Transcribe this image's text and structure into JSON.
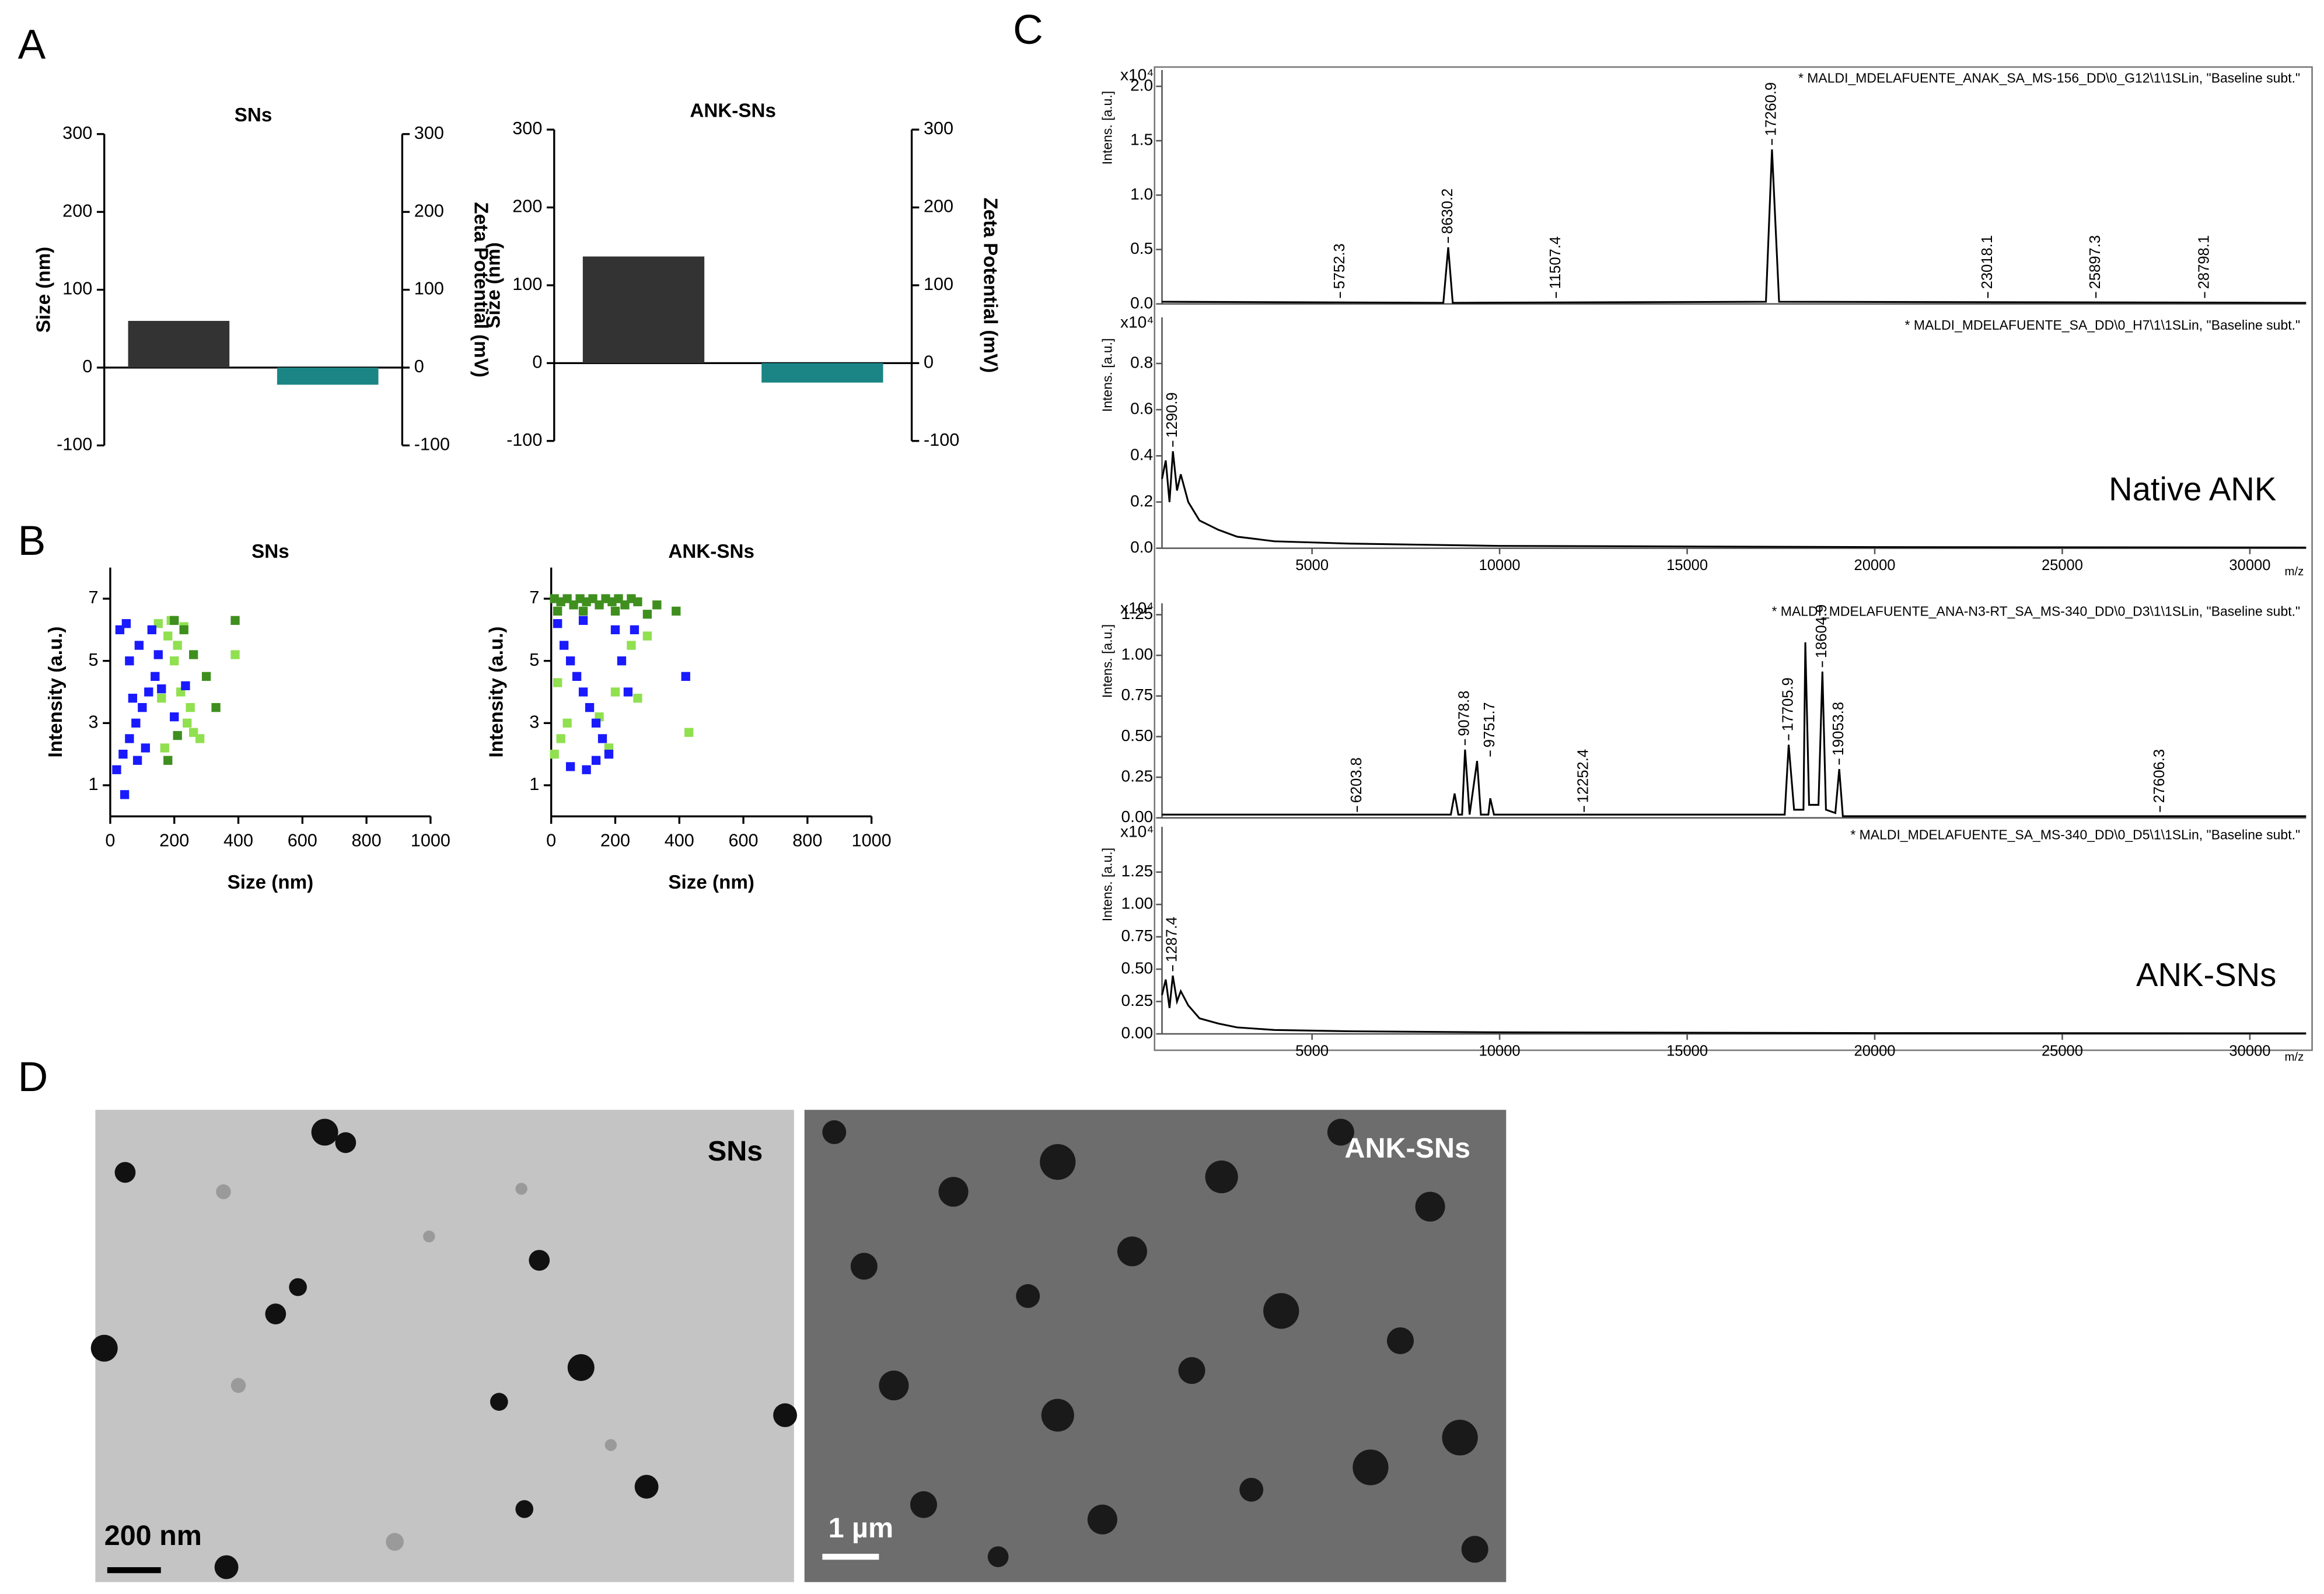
{
  "panel_labels": [
    "A",
    "B",
    "C",
    "D"
  ],
  "chart_data": [
    {
      "type": "bar",
      "title": "SNs",
      "ylabel": "Size (nm)",
      "y2label": "Zeta Potential (mV)",
      "categories": [
        null,
        null
      ],
      "series": [
        {
          "color": "#333333",
          "values": [
            60,
            null
          ]
        },
        {
          "color": "#1b8585",
          "values": [
            null,
            -22
          ],
          "axis": "y2"
        }
      ],
      "ylim": [
        -100,
        300
      ],
      "yticks": [
        -100,
        0,
        100,
        200,
        300
      ],
      "y2lim": [
        -100,
        300
      ],
      "y2ticks": [
        -100,
        0,
        100,
        200,
        300
      ]
    },
    {
      "type": "bar",
      "title": "ANK-SNs",
      "ylabel": "Size (nm)",
      "y2label": "Zeta Potential (mV)",
      "categories": [
        null,
        null
      ],
      "series": [
        {
          "color": "#333333",
          "values": [
            137,
            null
          ]
        },
        {
          "color": "#1b8585",
          "values": [
            null,
            -25
          ],
          "axis": "y2"
        }
      ],
      "ylim": [
        -100,
        300
      ],
      "yticks": [
        -100,
        0,
        100,
        200,
        300
      ],
      "y2lim": [
        -100,
        300
      ],
      "y2ticks": [
        -100,
        0,
        100,
        200,
        300
      ]
    },
    {
      "type": "scatter",
      "title": "SNs",
      "xlabel": "Size (nm)",
      "ylabel": "Intensity (a.u.)",
      "xlim": [
        0,
        1000
      ],
      "xticks": [
        0,
        200,
        400,
        600,
        800,
        1000
      ],
      "ylim": [
        0,
        8
      ],
      "yticks": [
        1,
        3,
        5,
        7
      ],
      "series": [
        {
          "color": "#90e050",
          "x": [
            150,
            180,
            200,
            220,
            240,
            260,
            170,
            190,
            210,
            250,
            280,
            390,
            230,
            160
          ],
          "values": [
            6.2,
            5.8,
            5,
            4,
            3,
            2.7,
            2.2,
            6.3,
            5.5,
            3.5,
            2.5,
            5.2,
            6.1,
            3.8
          ]
        },
        {
          "color": "#3f8f1f",
          "x": [
            200,
            230,
            260,
            300,
            330,
            390,
            210,
            180
          ],
          "values": [
            6.3,
            6,
            5.2,
            4.5,
            3.5,
            6.3,
            2.6,
            1.8
          ]
        },
        {
          "color": "#1a1aff",
          "x": [
            20,
            40,
            60,
            80,
            100,
            120,
            140,
            60,
            90,
            30,
            50,
            110,
            70,
            150,
            160,
            130,
            200,
            45,
            85,
            235
          ],
          "values": [
            1.5,
            2,
            2.5,
            3,
            3.5,
            4,
            4.5,
            5,
            5.5,
            6,
            6.2,
            2.2,
            3.8,
            5.2,
            4.1,
            6,
            3.2,
            0.7,
            1.8,
            4.2
          ]
        }
      ]
    },
    {
      "type": "scatter",
      "title": "ANK-SNs",
      "xlabel": "Size (nm)",
      "ylabel": "Intensity (a.u.)",
      "xlim": [
        0,
        1000
      ],
      "xticks": [
        0,
        200,
        400,
        600,
        800,
        1000
      ],
      "ylim": [
        0,
        8
      ],
      "yticks": [
        1,
        3,
        5,
        7
      ],
      "series": [
        {
          "color": "#90e050",
          "x": [
            10,
            30,
            50,
            150,
            200,
            250,
            300,
            20,
            180,
            270,
            430
          ],
          "values": [
            2,
            2.5,
            3,
            3.2,
            4,
            5.5,
            5.8,
            4.3,
            2.2,
            3.8,
            2.7
          ]
        },
        {
          "color": "#3f8f1f",
          "x": [
            10,
            30,
            50,
            70,
            90,
            110,
            130,
            150,
            170,
            190,
            210,
            230,
            250,
            270,
            300,
            330,
            390,
            20,
            100,
            200
          ],
          "values": [
            7,
            6.9,
            7,
            6.8,
            7,
            6.9,
            7,
            6.8,
            7,
            6.9,
            7,
            6.8,
            7,
            6.9,
            6.5,
            6.8,
            6.6,
            6.6,
            6.6,
            6.6
          ]
        },
        {
          "color": "#1a1aff",
          "x": [
            20,
            40,
            60,
            80,
            100,
            120,
            140,
            160,
            180,
            200,
            220,
            240,
            60,
            100,
            140,
            260,
            420,
            110
          ],
          "values": [
            6.2,
            5.5,
            5,
            4.5,
            4,
            3.5,
            3,
            2.5,
            2,
            6,
            5,
            4,
            1.6,
            6.3,
            1.8,
            6,
            4.5,
            1.5
          ]
        }
      ]
    },
    {
      "type": "line",
      "header": "* MALDI_MDELAFUENTE_ANAK_SA_MS-156_DD\\0_G12\\1\\1SLin, \"Baseline subt.\"",
      "ylabel": "Intens. [a.u.]",
      "y_multiplier": "x10⁴",
      "xlim": [
        1000,
        31500
      ],
      "ylim": [
        0,
        2.15
      ],
      "yticks": [
        {
          "value": 0,
          "label": "0.0"
        },
        0.5,
        {
          "value": 1,
          "label": "1.0"
        },
        1.5,
        {
          "value": 2,
          "label": "2.0"
        }
      ],
      "series": [
        {
          "color": "#000000",
          "x": [
            1000,
            8500,
            8630.2,
            8750,
            17100,
            17260.9,
            17450,
            31500
          ],
          "values": [
            0.02,
            0.01,
            0.52,
            0.01,
            0.02,
            1.42,
            0.02,
            0.01
          ]
        }
      ],
      "peaks": [
        5752.3,
        8630.2,
        11507.4,
        17260.9,
        23018.1,
        25897.3,
        28798.1
      ]
    },
    {
      "type": "line",
      "header": "* MALDI_MDELAFUENTE_SA_DD\\0_H7\\1\\1SLin, \"Baseline subt.\"",
      "ylabel": "Intens. [a.u.]",
      "y_multiplier": "x10⁴",
      "note": "Native ANK",
      "xlabel": "m/z",
      "xlim": [
        1000,
        31500
      ],
      "xticks": [
        5000,
        10000,
        15000,
        20000,
        25000,
        30000
      ],
      "ylim": [
        0,
        1.0
      ],
      "yticks": [
        {
          "value": 0,
          "label": "0.0"
        },
        0.2,
        0.4,
        0.6,
        0.8
      ],
      "series": [
        {
          "color": "#000000",
          "x": [
            1000,
            1100,
            1200,
            1290.9,
            1400,
            1500,
            1700,
            2000,
            2500,
            3000,
            4000,
            6000,
            10000,
            20000,
            31500
          ],
          "values": [
            0.3,
            0.38,
            0.2,
            0.42,
            0.25,
            0.32,
            0.2,
            0.12,
            0.08,
            0.05,
            0.03,
            0.02,
            0.01,
            0.005,
            0.003
          ]
        }
      ],
      "peaks": [
        1290.9
      ]
    },
    {
      "type": "line",
      "header": "* MALDI_MDELAFUENTE_ANA-N3-RT_SA_MS-340_DD\\0_D3\\1\\1SLin, \"Baseline subt.\"",
      "ylabel": "Intens. [a.u.]",
      "y_multiplier": "x10⁴",
      "xlim": [
        1000,
        31500
      ],
      "ylim": [
        0,
        1.32
      ],
      "yticks": [
        {
          "value": 0,
          "label": "0.00"
        },
        {
          "value": 0.25,
          "label": "0.25"
        },
        {
          "value": 0.5,
          "label": "0.50"
        },
        {
          "value": 0.75,
          "label": "0.75"
        },
        {
          "value": 1,
          "label": "1.00"
        },
        {
          "value": 1.25,
          "label": "1.25"
        }
      ],
      "series": [
        {
          "color": "#000000",
          "x": [
            1000,
            8700,
            8800,
            8900,
            9000,
            9078.8,
            9200,
            9400,
            9500,
            9700,
            9751.7,
            9850,
            17600,
            17705.9,
            17850,
            18100,
            18150,
            18250,
            18500,
            18604.9,
            18700,
            18950,
            19053.8,
            19150,
            31500
          ],
          "values": [
            0.02,
            0.02,
            0.15,
            0.02,
            0.02,
            0.42,
            0.02,
            0.35,
            0.02,
            0.02,
            0.12,
            0.02,
            0.02,
            0.45,
            0.05,
            0.05,
            1.08,
            0.08,
            0.08,
            0.9,
            0.05,
            0.03,
            0.3,
            0.01,
            0.01
          ]
        }
      ],
      "peaks": [
        6203.8,
        9078.8,
        9751.7,
        12252.4,
        17705.9,
        18604.9,
        19053.8,
        27606.3
      ]
    },
    {
      "type": "line",
      "header": "* MALDI_MDELAFUENTE_SA_MS-340_DD\\0_D5\\1\\1SLin, \"Baseline subt.\"",
      "ylabel": "Intens. [a.u.]",
      "y_multiplier": "x10⁴",
      "note": "ANK-SNs",
      "xlabel": "m/z",
      "xlim": [
        1000,
        31500
      ],
      "xticks": [
        5000,
        10000,
        15000,
        20000,
        25000,
        30000
      ],
      "ylim": [
        0,
        1.6
      ],
      "yticks": [
        {
          "value": 0,
          "label": "0.00"
        },
        {
          "value": 0.25,
          "label": "0.25"
        },
        {
          "value": 0.5,
          "label": "0.50"
        },
        {
          "value": 0.75,
          "label": "0.75"
        },
        {
          "value": 1,
          "label": "1.00"
        },
        {
          "value": 1.25,
          "label": "1.25"
        }
      ],
      "series": [
        {
          "color": "#000000",
          "x": [
            1000,
            1100,
            1200,
            1287.4,
            1400,
            1500,
            1700,
            2000,
            2500,
            3000,
            4000,
            6000,
            10000,
            20000,
            31500
          ],
          "values": [
            0.3,
            0.42,
            0.2,
            0.45,
            0.25,
            0.33,
            0.22,
            0.12,
            0.08,
            0.05,
            0.03,
            0.02,
            0.012,
            0.006,
            0.004
          ]
        }
      ],
      "peaks": [
        1287.4
      ]
    }
  ],
  "images": [
    {
      "label": "SNs",
      "scale_bar": "200 nm"
    },
    {
      "label": "ANK-SNs",
      "scale_bar": "1 µm"
    }
  ]
}
